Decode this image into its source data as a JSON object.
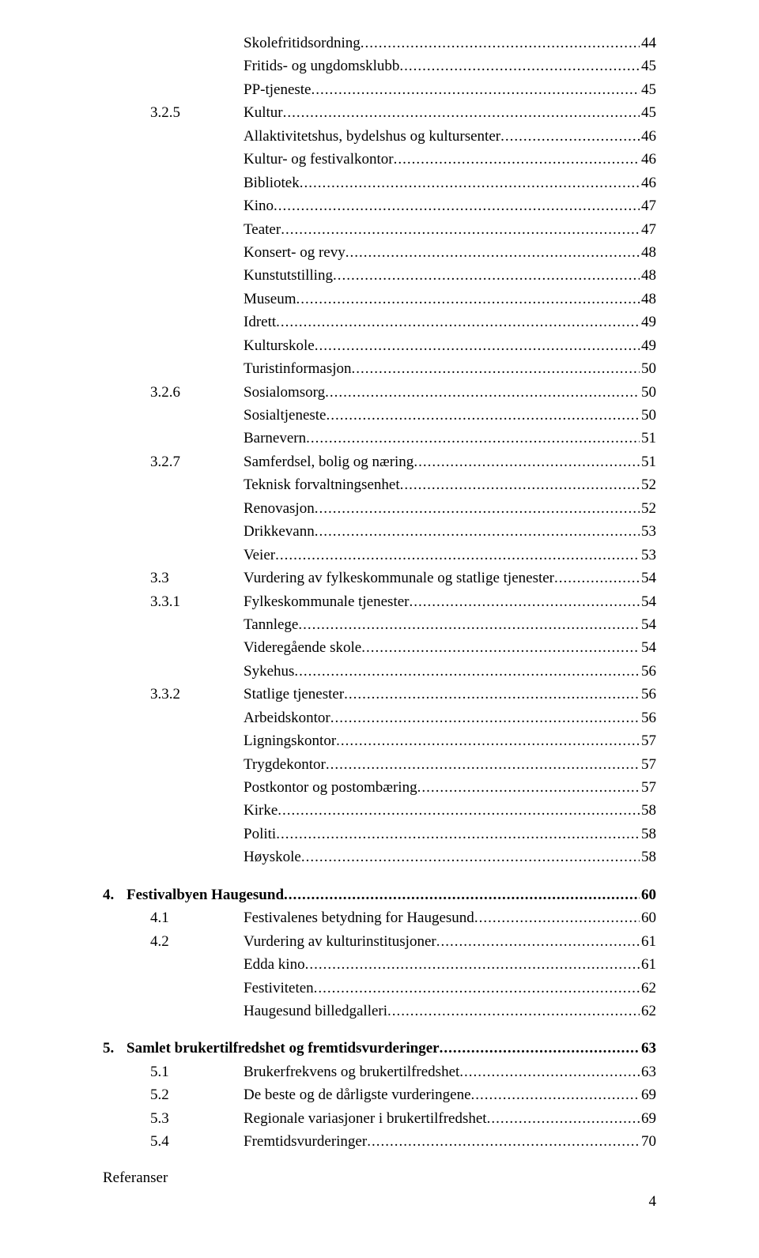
{
  "font_family": "Times New Roman",
  "text_color": "#000000",
  "background_color": "#ffffff",
  "line_font_size": 19,
  "page_number": "4",
  "references_label": "Referanser",
  "entries": [
    {
      "indent": 2,
      "num": "",
      "label": "Skolefritidsordning",
      "page": "44",
      "bold": false,
      "gap": false
    },
    {
      "indent": 2,
      "num": "",
      "label": "Fritids- og ungdomsklubb",
      "page": "45",
      "bold": false,
      "gap": false
    },
    {
      "indent": 2,
      "num": "",
      "label": "PP-tjeneste",
      "page": "45",
      "bold": false,
      "gap": false
    },
    {
      "indent": 1,
      "num": "3.2.5",
      "label": "Kultur",
      "page": "45",
      "bold": false,
      "gap": false
    },
    {
      "indent": 2,
      "num": "",
      "label": "Allaktivitetshus, bydelshus og kultursenter",
      "page": "46",
      "bold": false,
      "gap": false
    },
    {
      "indent": 2,
      "num": "",
      "label": "Kultur- og festivalkontor",
      "page": "46",
      "bold": false,
      "gap": false
    },
    {
      "indent": 2,
      "num": "",
      "label": "Bibliotek",
      "page": "46",
      "bold": false,
      "gap": false
    },
    {
      "indent": 2,
      "num": "",
      "label": "Kino",
      "page": "47",
      "bold": false,
      "gap": false
    },
    {
      "indent": 2,
      "num": "",
      "label": "Teater",
      "page": "47",
      "bold": false,
      "gap": false
    },
    {
      "indent": 2,
      "num": "",
      "label": "Konsert- og revy",
      "page": "48",
      "bold": false,
      "gap": false
    },
    {
      "indent": 2,
      "num": "",
      "label": "Kunstutstilling",
      "page": "48",
      "bold": false,
      "gap": false
    },
    {
      "indent": 2,
      "num": "",
      "label": "Museum",
      "page": "48",
      "bold": false,
      "gap": false
    },
    {
      "indent": 2,
      "num": "",
      "label": "Idrett",
      "page": "49",
      "bold": false,
      "gap": false
    },
    {
      "indent": 2,
      "num": "",
      "label": "Kulturskole",
      "page": "49",
      "bold": false,
      "gap": false
    },
    {
      "indent": 2,
      "num": "",
      "label": "Turistinformasjon",
      "page": "50",
      "bold": false,
      "gap": false
    },
    {
      "indent": 1,
      "num": "3.2.6",
      "label": "Sosialomsorg",
      "page": "50",
      "bold": false,
      "gap": false
    },
    {
      "indent": 2,
      "num": "",
      "label": "Sosialtjeneste",
      "page": "50",
      "bold": false,
      "gap": false
    },
    {
      "indent": 2,
      "num": "",
      "label": "Barnevern",
      "page": "51",
      "bold": false,
      "gap": false
    },
    {
      "indent": 1,
      "num": "3.2.7",
      "label": "Samferdsel, bolig og næring",
      "page": "51",
      "bold": false,
      "gap": false
    },
    {
      "indent": 2,
      "num": "",
      "label": "Teknisk forvaltningsenhet",
      "page": "52",
      "bold": false,
      "gap": false
    },
    {
      "indent": 2,
      "num": "",
      "label": "Renovasjon",
      "page": "52",
      "bold": false,
      "gap": false
    },
    {
      "indent": 2,
      "num": "",
      "label": "Drikkevann",
      "page": "53",
      "bold": false,
      "gap": false
    },
    {
      "indent": 2,
      "num": "",
      "label": "Veier",
      "page": "53",
      "bold": false,
      "gap": false
    },
    {
      "indent": 1,
      "num": "3.3",
      "label": "Vurdering av fylkeskommunale og statlige tjenester",
      "page": "54",
      "bold": false,
      "gap": false
    },
    {
      "indent": 1,
      "num": "3.3.1",
      "label": "Fylkeskommunale tjenester",
      "page": "54",
      "bold": false,
      "gap": false
    },
    {
      "indent": 2,
      "num": "",
      "label": "Tannlege",
      "page": "54",
      "bold": false,
      "gap": false
    },
    {
      "indent": 2,
      "num": "",
      "label": "Videregående skole",
      "page": "54",
      "bold": false,
      "gap": false
    },
    {
      "indent": 2,
      "num": "",
      "label": "Sykehus",
      "page": "56",
      "bold": false,
      "gap": false
    },
    {
      "indent": 1,
      "num": "3.3.2",
      "label": "Statlige tjenester",
      "page": "56",
      "bold": false,
      "gap": false
    },
    {
      "indent": 2,
      "num": "",
      "label": "Arbeidskontor",
      "page": "56",
      "bold": false,
      "gap": false
    },
    {
      "indent": 2,
      "num": "",
      "label": "Ligningskontor",
      "page": "57",
      "bold": false,
      "gap": false
    },
    {
      "indent": 2,
      "num": "",
      "label": "Trygdekontor",
      "page": "57",
      "bold": false,
      "gap": false
    },
    {
      "indent": 2,
      "num": "",
      "label": "Postkontor og postombæring",
      "page": "57",
      "bold": false,
      "gap": false
    },
    {
      "indent": 2,
      "num": "",
      "label": "Kirke",
      "page": "58",
      "bold": false,
      "gap": false
    },
    {
      "indent": 2,
      "num": "",
      "label": "Politi",
      "page": "58",
      "bold": false,
      "gap": false
    },
    {
      "indent": 2,
      "num": "",
      "label": "Høyskole",
      "page": "58",
      "bold": false,
      "gap": false
    },
    {
      "indent": 0,
      "num": "4.",
      "label": "Festivalbyen Haugesund",
      "page": "60",
      "bold": true,
      "gap": true
    },
    {
      "indent": 1,
      "num": "4.1",
      "label": "Festivalenes betydning for Haugesund",
      "page": "60",
      "bold": false,
      "gap": false
    },
    {
      "indent": 1,
      "num": "4.2",
      "label": "Vurdering av kulturinstitusjoner",
      "page": "61",
      "bold": false,
      "gap": false
    },
    {
      "indent": 2,
      "num": "",
      "label": "Edda kino",
      "page": "61",
      "bold": false,
      "gap": false
    },
    {
      "indent": 2,
      "num": "",
      "label": "Festiviteten",
      "page": "62",
      "bold": false,
      "gap": false
    },
    {
      "indent": 2,
      "num": "",
      "label": "Haugesund billedgalleri",
      "page": "62",
      "bold": false,
      "gap": false
    },
    {
      "indent": 0,
      "num": "5.",
      "label": "Samlet brukertilfredshet og fremtidsvurderinger",
      "page": "63",
      "bold": true,
      "gap": true
    },
    {
      "indent": 1,
      "num": "5.1",
      "label": "Brukerfrekvens og brukertilfredshet",
      "page": "63",
      "bold": false,
      "gap": false
    },
    {
      "indent": 1,
      "num": "5.2",
      "label": "De beste og de dårligste vurderingene",
      "page": "69",
      "bold": false,
      "gap": false
    },
    {
      "indent": 1,
      "num": "5.3",
      "label": "Regionale variasjoner i brukertilfredshet",
      "page": "69",
      "bold": false,
      "gap": false
    },
    {
      "indent": 1,
      "num": "5.4",
      "label": "Fremtidsvurderinger",
      "page": "70",
      "bold": false,
      "gap": false
    }
  ]
}
